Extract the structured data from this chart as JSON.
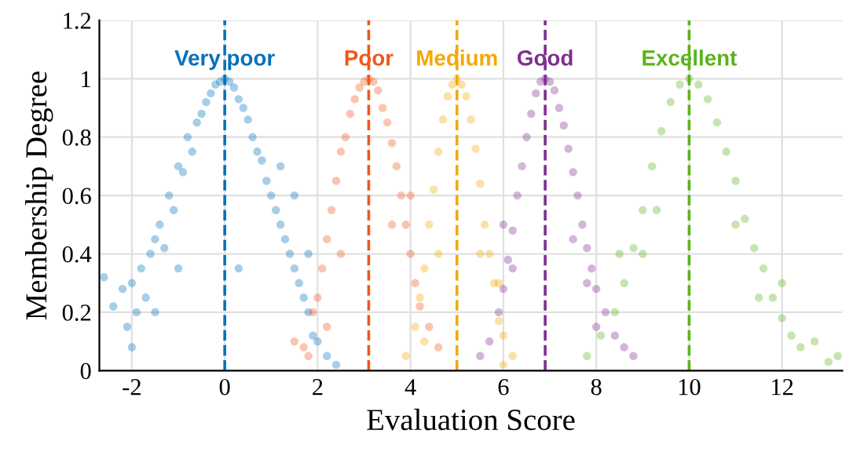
{
  "chart_data": {
    "type": "scatter",
    "xlabel": "Evaluation Score",
    "ylabel": "Membership Degree",
    "xlim": [
      -2.7,
      13.3
    ],
    "ylim": [
      0,
      1.2
    ],
    "xticks": [
      -2,
      0,
      2,
      4,
      6,
      8,
      10,
      12
    ],
    "yticks": [
      0,
      0.2,
      0.4,
      0.6,
      0.8,
      1,
      1.2
    ],
    "grid": true,
    "marker": "circle",
    "legend": false,
    "series": [
      {
        "name": "Very poor",
        "color": "#0072bd",
        "x": [
          -2.6,
          -2.4,
          -2.2,
          -2.1,
          -2.0,
          -1.9,
          -1.8,
          -1.7,
          -1.6,
          -1.5,
          -1.4,
          -1.3,
          -1.2,
          -1.1,
          -1.0,
          -0.9,
          -0.8,
          -0.7,
          -0.6,
          -0.5,
          -0.4,
          -0.3,
          -0.2,
          -0.1,
          0,
          0.1,
          0.2,
          0.3,
          0.4,
          0.5,
          0.6,
          0.7,
          0.8,
          0.9,
          1.0,
          1.1,
          1.2,
          1.3,
          1.4,
          1.5,
          1.6,
          1.7,
          1.8,
          1.9,
          2.0,
          2.2,
          2.4,
          -2.0,
          -1.5,
          -1.0,
          0.3,
          1.2,
          1.5,
          1.8
        ],
        "values": [
          0.32,
          0.22,
          0.28,
          0.15,
          0.3,
          0.2,
          0.35,
          0.25,
          0.4,
          0.45,
          0.5,
          0.42,
          0.6,
          0.55,
          0.7,
          0.68,
          0.8,
          0.75,
          0.85,
          0.88,
          0.92,
          0.95,
          0.98,
          0.99,
          1.0,
          0.99,
          0.97,
          0.93,
          0.9,
          0.86,
          0.8,
          0.75,
          0.72,
          0.65,
          0.6,
          0.55,
          0.5,
          0.45,
          0.4,
          0.35,
          0.3,
          0.25,
          0.2,
          0.12,
          0.1,
          0.05,
          0.02,
          0.08,
          0.2,
          0.35,
          0.35,
          0.7,
          0.6,
          0.4
        ]
      },
      {
        "name": "Poor",
        "color": "#f0581c",
        "x": [
          1.5,
          1.7,
          1.9,
          2.0,
          2.1,
          2.2,
          2.3,
          2.4,
          2.5,
          2.6,
          2.7,
          2.8,
          2.9,
          3.0,
          3.1,
          3.2,
          3.3,
          3.4,
          3.5,
          3.6,
          3.7,
          3.8,
          3.9,
          4.0,
          4.1,
          4.2,
          4.4,
          4.6,
          1.8,
          2.2,
          2.5,
          3.6,
          4.0
        ],
        "values": [
          0.1,
          0.08,
          0.2,
          0.25,
          0.35,
          0.45,
          0.55,
          0.65,
          0.75,
          0.8,
          0.88,
          0.93,
          0.97,
          0.99,
          1.0,
          0.99,
          0.96,
          0.9,
          0.85,
          0.78,
          0.7,
          0.6,
          0.5,
          0.4,
          0.3,
          0.22,
          0.15,
          0.08,
          0.05,
          0.15,
          0.4,
          0.5,
          0.6
        ]
      },
      {
        "name": "Medium",
        "color": "#f5a800",
        "x": [
          3.9,
          4.1,
          4.2,
          4.3,
          4.4,
          4.5,
          4.6,
          4.7,
          4.8,
          4.9,
          5.0,
          5.1,
          5.2,
          5.3,
          5.4,
          5.5,
          5.6,
          5.7,
          5.8,
          5.9,
          6.0,
          6.2,
          4.3,
          4.6,
          5.5,
          5.9,
          6.0
        ],
        "values": [
          0.05,
          0.15,
          0.25,
          0.35,
          0.5,
          0.62,
          0.75,
          0.86,
          0.94,
          0.98,
          1.0,
          0.98,
          0.94,
          0.86,
          0.76,
          0.64,
          0.5,
          0.4,
          0.3,
          0.17,
          0.12,
          0.05,
          0.1,
          0.4,
          0.4,
          0.3,
          0.02
        ]
      },
      {
        "name": "Good",
        "color": "#7e2f8e",
        "x": [
          5.5,
          5.7,
          5.9,
          6.0,
          6.1,
          6.2,
          6.3,
          6.4,
          6.5,
          6.6,
          6.7,
          6.8,
          6.9,
          7.0,
          7.1,
          7.2,
          7.3,
          7.4,
          7.5,
          7.6,
          7.7,
          7.8,
          7.9,
          8.0,
          8.2,
          8.4,
          8.6,
          8.8,
          6.0,
          6.2,
          7.5,
          7.8,
          8.0
        ],
        "values": [
          0.05,
          0.1,
          0.2,
          0.28,
          0.38,
          0.48,
          0.6,
          0.7,
          0.8,
          0.88,
          0.95,
          0.99,
          1.0,
          0.99,
          0.96,
          0.9,
          0.84,
          0.76,
          0.68,
          0.6,
          0.5,
          0.42,
          0.35,
          0.28,
          0.2,
          0.12,
          0.08,
          0.05,
          0.5,
          0.35,
          0.45,
          0.3,
          0.15
        ]
      },
      {
        "name": "Excellent",
        "color": "#5bb31c",
        "x": [
          7.8,
          8.1,
          8.4,
          8.6,
          8.8,
          9.0,
          9.2,
          9.4,
          9.6,
          9.8,
          10.0,
          10.2,
          10.4,
          10.6,
          10.8,
          11.0,
          11.2,
          11.4,
          11.6,
          11.8,
          12.0,
          12.2,
          12.4,
          12.7,
          13.0,
          13.2,
          8.5,
          9.0,
          9.3,
          11.0,
          11.5,
          12.0
        ],
        "values": [
          0.05,
          0.12,
          0.2,
          0.3,
          0.42,
          0.55,
          0.7,
          0.82,
          0.92,
          0.98,
          1.0,
          0.98,
          0.93,
          0.85,
          0.75,
          0.65,
          0.52,
          0.42,
          0.35,
          0.25,
          0.18,
          0.12,
          0.08,
          0.1,
          0.03,
          0.05,
          0.4,
          0.4,
          0.55,
          0.5,
          0.25,
          0.3
        ]
      }
    ],
    "ref_lines": [
      {
        "axis": "x",
        "value": 0,
        "color": "#0072bd",
        "line_style": "dashed"
      },
      {
        "axis": "x",
        "value": 3.1,
        "color": "#f0581c",
        "line_style": "dashed"
      },
      {
        "axis": "x",
        "value": 5,
        "color": "#f5a800",
        "line_style": "dashed"
      },
      {
        "axis": "x",
        "value": 6.9,
        "color": "#7e2f8e",
        "line_style": "dashed"
      },
      {
        "axis": "x",
        "value": 10,
        "color": "#5bb31c",
        "line_style": "dashed"
      }
    ]
  }
}
